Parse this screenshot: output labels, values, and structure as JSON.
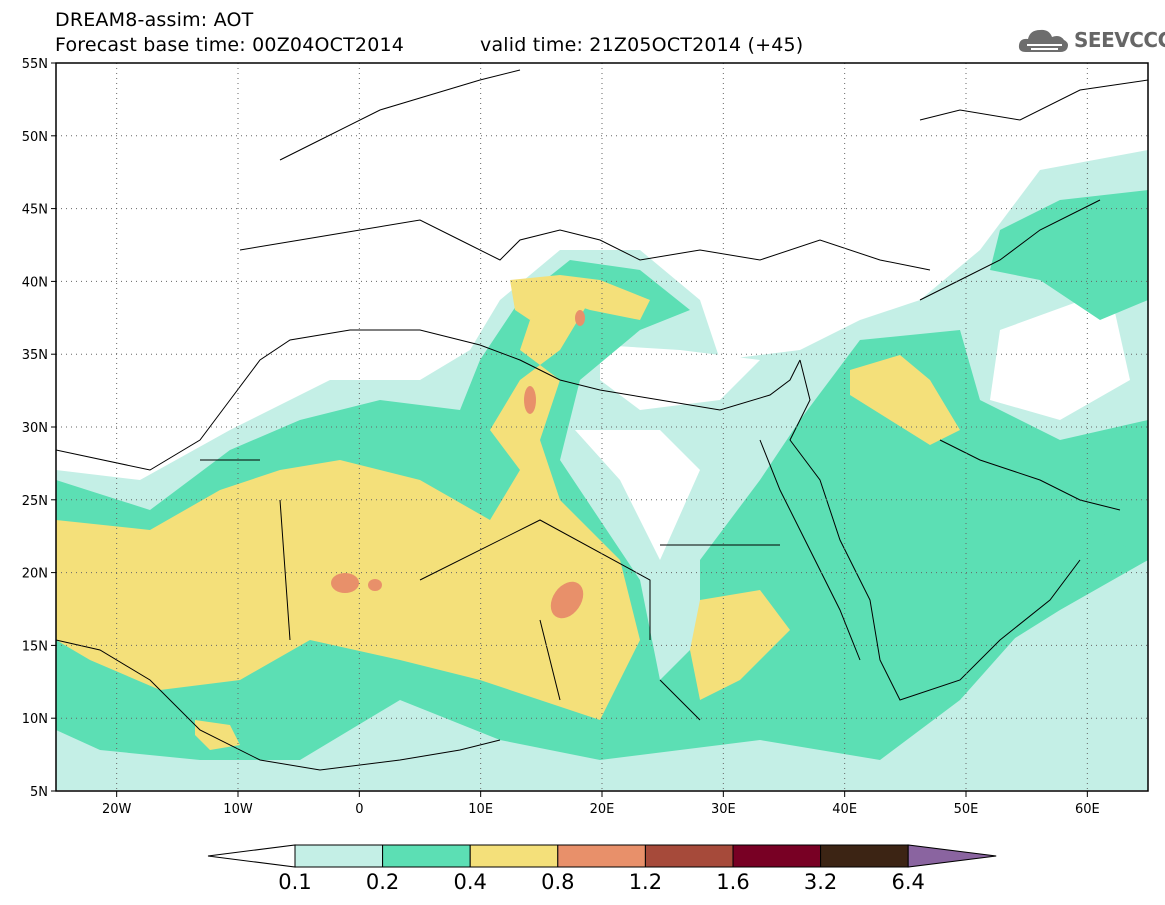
{
  "header": {
    "line1": "DREAM8-assim: AOT",
    "line2": "Forecast base time: 00Z04OCT2014",
    "line3": "valid time: 21Z05OCT2014 (+45)"
  },
  "logo": {
    "text": "SEEVCCC",
    "icon": "cloud-icon"
  },
  "map": {
    "lon_range": [
      -25,
      65
    ],
    "lat_range": [
      5,
      55
    ],
    "lat_ticks": [
      "55N",
      "50N",
      "45N",
      "40N",
      "35N",
      "30N",
      "25N",
      "20N",
      "15N",
      "10N",
      "5N"
    ],
    "lon_ticks": [
      "20W",
      "10W",
      "0",
      "10E",
      "20E",
      "30E",
      "40E",
      "50E",
      "60E"
    ],
    "grid": "dotted"
  },
  "colorbar": {
    "levels": [
      "0.1",
      "0.2",
      "0.4",
      "0.8",
      "1.2",
      "1.6",
      "3.2",
      "6.4"
    ],
    "colors": [
      "#ffffff",
      "#c4efe6",
      "#5cdfb4",
      "#f4e07a",
      "#e8906a",
      "#a64a3a",
      "#780024",
      "#3c2414",
      "#8a64a0"
    ]
  }
}
